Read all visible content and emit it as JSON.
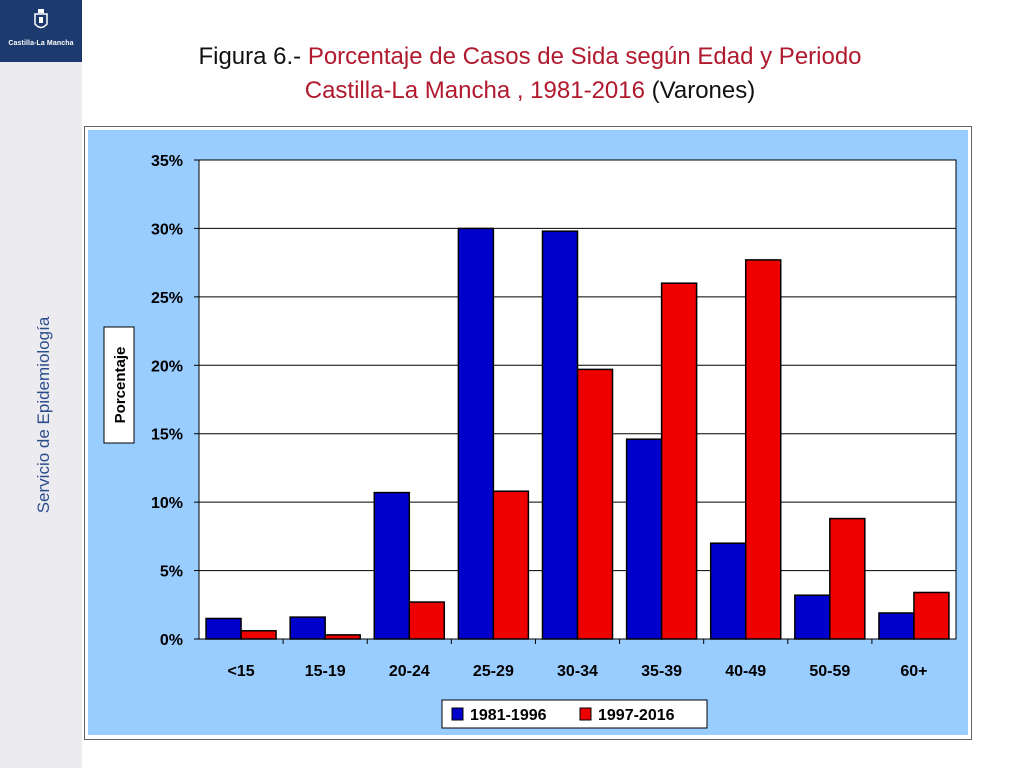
{
  "logo": {
    "text": "Castilla-La Mancha"
  },
  "sidebar": {
    "label": "Servicio de Epidemiología"
  },
  "title": {
    "prefix": "Figura 6.- ",
    "line1": "Porcentaje de Casos de Sida según Edad y Periodo",
    "line2_red": "Castilla-La Mancha , 1981-2016",
    "line2_tail": " (Varones)"
  },
  "colors": {
    "plot_background": "#99ccff",
    "series_1": "#0000cc",
    "series_2": "#ee0000",
    "title_accent": "#b0192e",
    "sidebar_text": "#2b4d8c",
    "logo_background": "#1d3a6e"
  },
  "chart_data": {
    "type": "bar",
    "title": "",
    "xlabel": "",
    "ylabel": "Porcentaje",
    "categories": [
      "<15",
      "15-19",
      "20-24",
      "25-29",
      "30-34",
      "35-39",
      "40-49",
      "50-59",
      "60+"
    ],
    "series": [
      {
        "name": "1981-1996",
        "values": [
          1.5,
          1.6,
          10.7,
          30.0,
          29.8,
          14.6,
          7.0,
          3.2,
          1.9
        ]
      },
      {
        "name": "1997-2016",
        "values": [
          0.6,
          0.3,
          2.7,
          10.8,
          19.7,
          26.0,
          27.7,
          8.8,
          3.4
        ]
      }
    ],
    "ylim": [
      0,
      35
    ],
    "yticks": [
      0,
      5,
      10,
      15,
      20,
      25,
      30,
      35
    ],
    "ytick_labels": [
      "0%",
      "5%",
      "10%",
      "15%",
      "20%",
      "25%",
      "30%",
      "35%"
    ],
    "grid": true,
    "legend_position": "bottom"
  }
}
